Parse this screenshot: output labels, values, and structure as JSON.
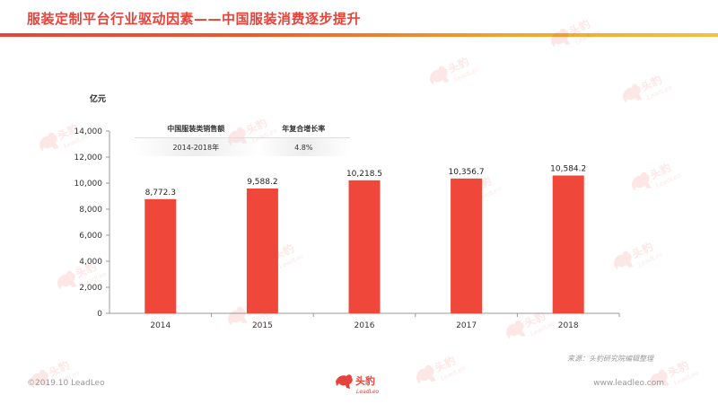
{
  "header": {
    "title": "服装定制平台行业驱动因素——中国服装消费逐步提升"
  },
  "table": {
    "headers": [
      "中国服装类销售额",
      "年复合增长率"
    ],
    "row": [
      "2014-2018年",
      "4.8%"
    ]
  },
  "source_note": "来源：头豹研究院编辑整理",
  "footer": {
    "copyright": "©2019.10 LeadLeo",
    "website": "www.leadleo.com",
    "logo_cn": "头豹",
    "logo_en": "LeadLeo"
  },
  "watermark": {
    "text_cn": "头豹",
    "text_en": "LeadLeo"
  },
  "colors": {
    "bar": "#f0473b",
    "title": "#e8433a",
    "accent": "#f6c03b"
  },
  "chart_data": {
    "type": "bar",
    "categories": [
      "2014",
      "2015",
      "2016",
      "2017",
      "2018"
    ],
    "values": [
      8772.3,
      9588.2,
      10218.5,
      10356.7,
      10584.2
    ],
    "value_labels": [
      "8,772.3",
      "9,588.2",
      "10,218.5",
      "10,356.7",
      "10,584.2"
    ],
    "title": "",
    "xlabel": "",
    "ylabel": "亿元",
    "ylim": [
      0,
      14000
    ],
    "yticks": [
      0,
      2000,
      4000,
      6000,
      8000,
      10000,
      12000,
      14000
    ],
    "ytick_labels": [
      "0",
      "2,000",
      "4,000",
      "6,000",
      "8,000",
      "10,000",
      "12,000",
      "14,000"
    ],
    "grid": false,
    "legend": "none"
  }
}
